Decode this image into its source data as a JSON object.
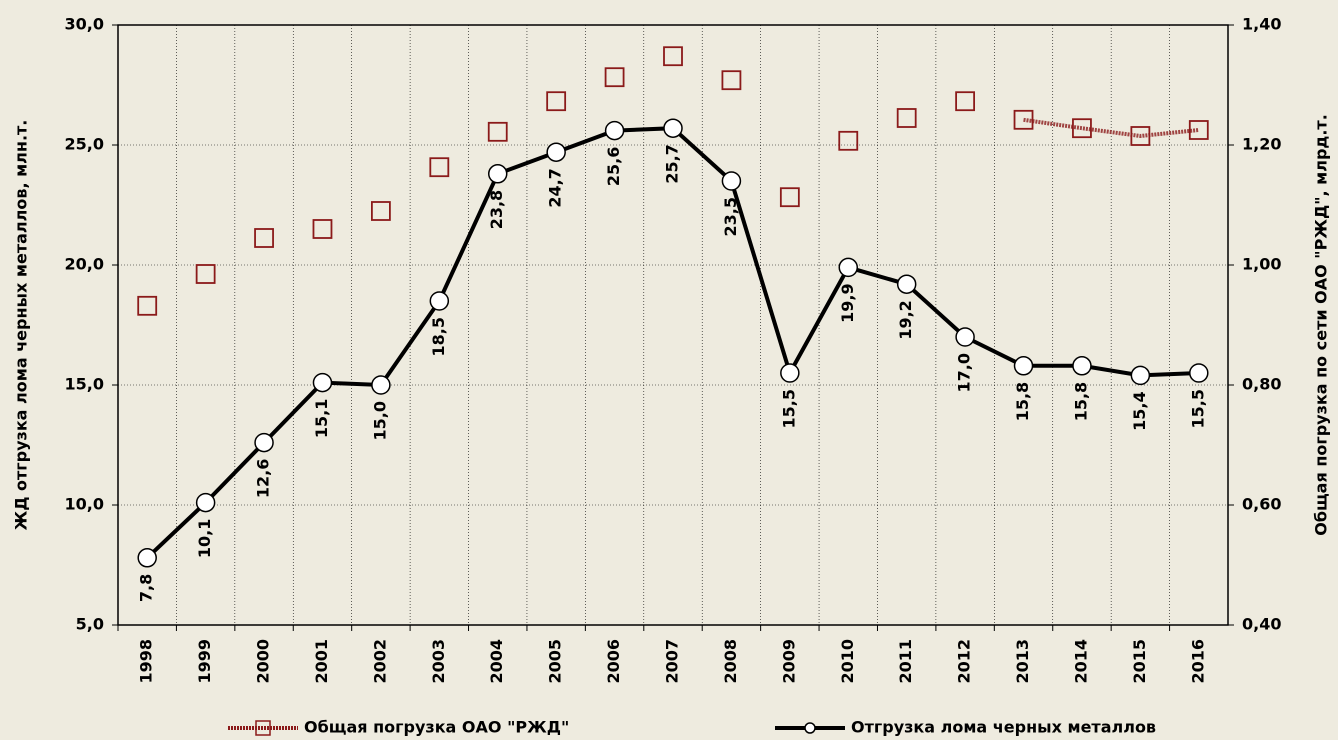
{
  "chart_data": {
    "type": "line",
    "categories": [
      "1998",
      "1999",
      "2000",
      "2001",
      "2002",
      "2003",
      "2004",
      "2005",
      "2006",
      "2007",
      "2008",
      "2009",
      "2010",
      "2011",
      "2012",
      "2013",
      "2014",
      "2015",
      "2016"
    ],
    "y_label": "ЖД отгрузка лома черных металлов, млн.т.",
    "y2_label": "Общая погрузка по сети ОАО \"РЖД\", млрд.т.",
    "ylim": [
      5,
      30
    ],
    "yticks": [
      {
        "value": 5,
        "label": "5,0"
      },
      {
        "value": 10,
        "label": "10,0"
      },
      {
        "value": 15,
        "label": "15,0"
      },
      {
        "value": 20,
        "label": "20,0"
      },
      {
        "value": 25,
        "label": "25,0"
      },
      {
        "value": 30,
        "label": "30,0"
      }
    ],
    "y2lim": [
      0.4,
      1.4
    ],
    "y2ticks": [
      {
        "value": 0.4,
        "label": "0,40"
      },
      {
        "value": 0.6,
        "label": "0,60"
      },
      {
        "value": 0.8,
        "label": "0,80"
      },
      {
        "value": 1.0,
        "label": "1,00"
      },
      {
        "value": 1.2,
        "label": "1,20"
      },
      {
        "value": 1.4,
        "label": "1,40"
      }
    ],
    "grid": true,
    "series": [
      {
        "name": "Общая погрузка ОАО \"РЖД\"",
        "color": "#8b1a1a",
        "axis": "y2",
        "values": [
          0.932,
          0.985,
          1.045,
          1.06,
          1.09,
          1.163,
          1.222,
          1.273,
          1.313,
          1.348,
          1.308,
          1.113,
          1.207,
          1.245,
          1.273,
          1.242,
          1.228,
          1.215,
          1.225
        ]
      },
      {
        "name": "Отгрузка лома черных металлов",
        "color": "#000000",
        "axis": "y",
        "values": [
          7.8,
          10.1,
          12.6,
          15.1,
          15.0,
          18.5,
          23.8,
          24.7,
          25.6,
          25.7,
          23.5,
          15.5,
          19.9,
          19.2,
          17.0,
          15.8,
          15.8,
          15.4,
          15.5
        ],
        "value_labels": [
          "7,8",
          "10,1",
          "12,6",
          "15,1",
          "15,0",
          "18,5",
          "23,8",
          "24,7",
          "25,6",
          "25,7",
          "23,5",
          "15,5",
          "19,9",
          "19,2",
          "17,0",
          "15,8",
          "15,8",
          "15,4",
          "15,5"
        ]
      }
    ]
  }
}
